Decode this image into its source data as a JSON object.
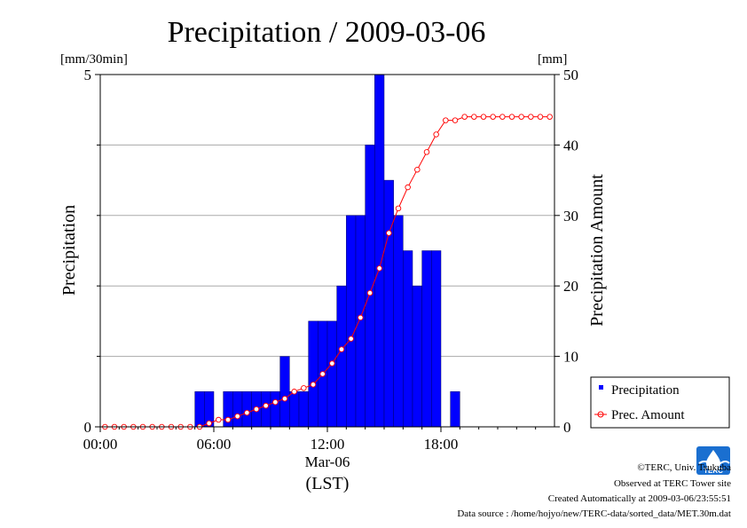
{
  "chart_data": {
    "type": "bar",
    "title": "Precipitation / 2009-03-06",
    "ylabel": "Precipitation",
    "y2label": "Precipitation Amount",
    "yunit": "[mm/30min]",
    "y2unit": "[mm]",
    "xdate": "Mar-06",
    "xtz": "(LST)",
    "xticks": [
      "00:00",
      "06:00",
      "12:00",
      "18:00"
    ],
    "ylim": [
      0,
      5
    ],
    "y2lim": [
      0,
      50
    ],
    "yticks": [
      "0",
      "5"
    ],
    "y2ticks": [
      "0",
      "10",
      "20",
      "30",
      "40",
      "50"
    ],
    "grid": true,
    "legend_position": "right",
    "colors": {
      "bars": "#0000ff",
      "line": "#ff0000"
    },
    "series": [
      {
        "name": "Precipitation",
        "kind": "bar",
        "x": [
          "00:00",
          "00:30",
          "01:00",
          "01:30",
          "02:00",
          "02:30",
          "03:00",
          "03:30",
          "04:00",
          "04:30",
          "05:00",
          "05:30",
          "06:00",
          "06:30",
          "07:00",
          "07:30",
          "08:00",
          "08:30",
          "09:00",
          "09:30",
          "10:00",
          "10:30",
          "11:00",
          "11:30",
          "12:00",
          "12:30",
          "13:00",
          "13:30",
          "14:00",
          "14:30",
          "15:00",
          "15:30",
          "16:00",
          "16:30",
          "17:00",
          "17:30",
          "18:00",
          "18:30",
          "19:00",
          "19:30",
          "20:00",
          "20:30",
          "21:00",
          "21:30",
          "22:00",
          "22:30",
          "23:00",
          "23:30"
        ],
        "values": [
          0,
          0,
          0,
          0,
          0,
          0,
          0,
          0,
          0,
          0,
          0.5,
          0.5,
          0,
          0.5,
          0.5,
          0.5,
          0.5,
          0.5,
          0.5,
          1,
          0.5,
          0.5,
          1.5,
          1.5,
          1.5,
          2,
          3,
          3,
          4,
          5,
          3.5,
          3,
          2.5,
          2,
          2.5,
          2.5,
          0,
          0.5,
          0,
          0,
          0,
          0,
          0,
          0,
          0,
          0,
          0,
          0
        ]
      },
      {
        "name": "Prec. Amount",
        "kind": "line",
        "x": [
          "00:00",
          "00:30",
          "01:00",
          "01:30",
          "02:00",
          "02:30",
          "03:00",
          "03:30",
          "04:00",
          "04:30",
          "05:00",
          "05:30",
          "06:00",
          "06:30",
          "07:00",
          "07:30",
          "08:00",
          "08:30",
          "09:00",
          "09:30",
          "10:00",
          "10:30",
          "11:00",
          "11:30",
          "12:00",
          "12:30",
          "13:00",
          "13:30",
          "14:00",
          "14:30",
          "15:00",
          "15:30",
          "16:00",
          "16:30",
          "17:00",
          "17:30",
          "18:00",
          "18:30",
          "19:00",
          "19:30",
          "20:00",
          "20:30",
          "21:00",
          "21:30",
          "22:00",
          "22:30",
          "23:00",
          "23:30"
        ],
        "values": [
          0,
          0,
          0,
          0,
          0,
          0,
          0,
          0,
          0,
          0,
          0,
          0.5,
          1,
          1,
          1.5,
          2,
          2.5,
          3,
          3.5,
          4,
          5,
          5.5,
          6,
          7.5,
          9,
          11,
          12.5,
          15.5,
          19,
          22.5,
          27.5,
          31,
          34,
          36.5,
          39,
          41.5,
          43.5,
          43.5,
          44,
          44,
          44,
          44,
          44,
          44,
          44,
          44,
          44,
          44
        ]
      }
    ]
  },
  "credits": {
    "copyright": "©TERC, Univ. Tsukuba",
    "observed": "Observed at TERC Tower site",
    "created": "Created Automatically at 2009-03-06/23:55:51",
    "source": "Data source : /home/hojyo/new/TERC-data/sorted_data/MET.30m.dat",
    "logo_text": "TERC"
  }
}
